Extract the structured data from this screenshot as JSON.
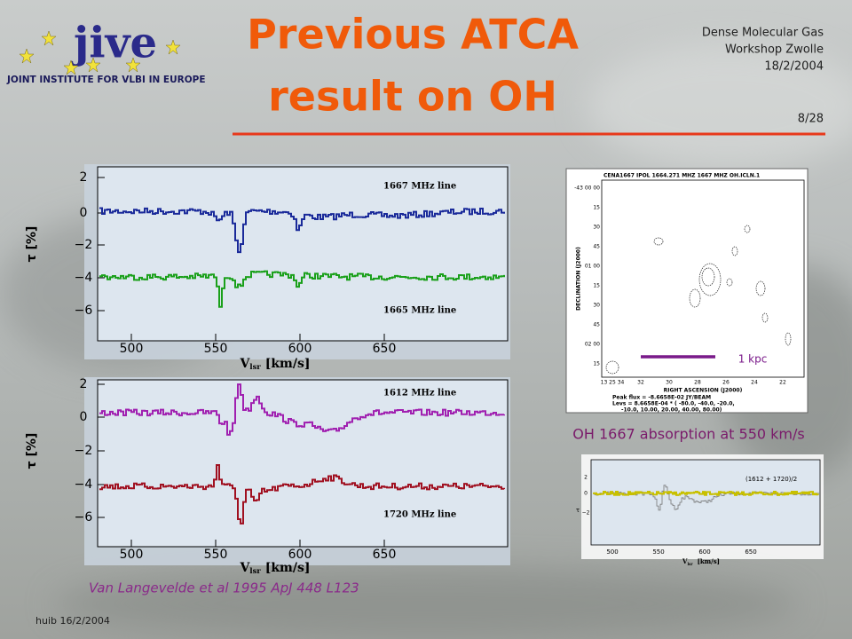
{
  "header": {
    "title_lines": [
      "Previous ATCA",
      "result on OH"
    ],
    "logo": "jive",
    "institute": "JOINT INSTITUTE FOR VLBI IN EUROPE",
    "meta": [
      "Dense Molecular Gas",
      "Workshop Zwolle",
      "18/2/2004"
    ],
    "page": "8/28"
  },
  "plots": [
    {
      "labels": [
        "1667 MHz line",
        "1665 MHz line"
      ],
      "yticks": [
        "2",
        "0",
        "−2",
        "−4",
        "−6"
      ],
      "xticks": [
        "500",
        "550",
        "600",
        "650"
      ],
      "ylabel": "τ [%]",
      "xlabel": {
        "main": "V",
        "sub": "lsr",
        "unit": "[km/s]"
      }
    },
    {
      "labels": [
        "1612 MHz line",
        "1720 MHz line"
      ],
      "yticks": [
        "2",
        "0",
        "−2",
        "−4",
        "−6"
      ],
      "xticks": [
        "500",
        "550",
        "600",
        "650"
      ],
      "ylabel": "τ [%]",
      "xlabel": {
        "main": "V",
        "sub": "lsr",
        "unit": "[km/s]"
      }
    }
  ],
  "map": {
    "title": "CENA1667  IPOL  1664.271 MHZ  1667 MHZ OH.ICLN.1",
    "ylabel": "DECLINATION (J2000)",
    "xlabel": "RIGHT ASCENSION (J2000)",
    "yticks": [
      "-43 00 00",
      "15",
      "30",
      "45",
      "01 00",
      "15",
      "30",
      "45",
      "02 00",
      "15"
    ],
    "xticks": [
      "13 25 34",
      "32",
      "30",
      "28",
      "26",
      "24",
      "22"
    ],
    "notes": [
      "Peak flux = -8.6658E-02  JY/BEAM",
      "Levs = 8.6658E-04 * ( -80.0, -40.0, -20.0,",
      "-10.0, 10.00, 20.00, 40.00, 80.00)"
    ],
    "scale": "1 kpc",
    "caption": "OH 1667 absorption at 550 km/s"
  },
  "small_plot": {
    "label": "(1612 + 1720)/2",
    "ylabel": "τ",
    "yticks": [
      "2",
      "0",
      "−2"
    ],
    "xticks": [
      "500",
      "550",
      "600",
      "650"
    ],
    "xlabel": {
      "main": "V",
      "sub": "lsr",
      "unit": "[km/s]"
    }
  },
  "citation": "Van Langevelde et al  1995 ApJ 448 L123",
  "footer": "huib 16/2/2004"
}
